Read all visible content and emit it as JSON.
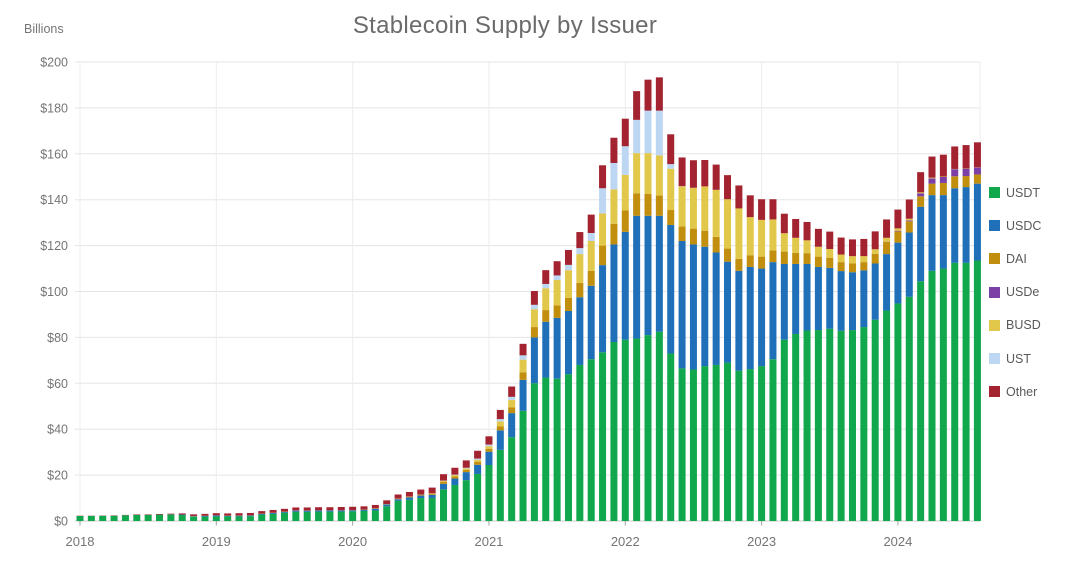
{
  "chart_data": {
    "type": "bar",
    "stacked": true,
    "title": "Stablecoin Supply by Issuer",
    "y_axis_label": "Billions",
    "ylim": [
      0,
      200
    ],
    "y_tick_step": 20,
    "y_tick_labels": [
      "$0",
      "$20",
      "$40",
      "$60",
      "$80",
      "$100",
      "$120",
      "$140",
      "$160",
      "$180",
      "$200"
    ],
    "x_tick_labels": [
      "2018",
      "2019",
      "2020",
      "2021",
      "2022",
      "2023",
      "2024"
    ],
    "legend_position": "right",
    "grid": "horizontal gridlines at $20 steps, faint vertical gridlines at year starts",
    "colors": {
      "background": "#FFFFFF",
      "gridline": "#E5E5E5",
      "year_gridline": "#ECECEC",
      "axis_line": "#CBCBCB",
      "tick_mark": "#A0A0A0",
      "tick_text": "#757575",
      "title_text": "#6B6B6B"
    },
    "months": [
      "2018-01",
      "2018-02",
      "2018-03",
      "2018-04",
      "2018-05",
      "2018-06",
      "2018-07",
      "2018-08",
      "2018-09",
      "2018-10",
      "2018-11",
      "2018-12",
      "2019-01",
      "2019-02",
      "2019-03",
      "2019-04",
      "2019-05",
      "2019-06",
      "2019-07",
      "2019-08",
      "2019-09",
      "2019-10",
      "2019-11",
      "2019-12",
      "2020-01",
      "2020-02",
      "2020-03",
      "2020-04",
      "2020-05",
      "2020-06",
      "2020-07",
      "2020-08",
      "2020-09",
      "2020-10",
      "2020-11",
      "2020-12",
      "2021-01",
      "2021-02",
      "2021-03",
      "2021-04",
      "2021-05",
      "2021-06",
      "2021-07",
      "2021-08",
      "2021-09",
      "2021-10",
      "2021-11",
      "2021-12",
      "2022-01",
      "2022-02",
      "2022-03",
      "2022-04",
      "2022-05",
      "2022-06",
      "2022-07",
      "2022-08",
      "2022-09",
      "2022-10",
      "2022-11",
      "2022-12",
      "2023-01",
      "2023-02",
      "2023-03",
      "2023-04",
      "2023-05",
      "2023-06",
      "2023-07",
      "2023-08",
      "2023-09",
      "2023-10",
      "2023-11",
      "2023-12",
      "2024-01",
      "2024-02",
      "2024-03",
      "2024-04",
      "2024-05",
      "2024-06",
      "2024-07",
      "2024-08"
    ],
    "series": [
      {
        "name": "USDT",
        "color": "#10A74D",
        "values": [
          2.2,
          2.2,
          2.3,
          2.3,
          2.5,
          2.7,
          2.7,
          2.8,
          2.8,
          2.6,
          1.9,
          1.9,
          2.0,
          2.0,
          2.0,
          2.1,
          2.8,
          3.1,
          3.6,
          4.0,
          4.0,
          4.1,
          4.1,
          4.1,
          4.2,
          4.4,
          4.6,
          6.4,
          8.8,
          9.2,
          10.0,
          10.0,
          13.8,
          15.7,
          17.8,
          20.5,
          24.4,
          31.0,
          36.5,
          48.0,
          60.0,
          62.5,
          62.0,
          64.0,
          68.0,
          70.5,
          73.5,
          78.0,
          79.0,
          79.5,
          81.0,
          82.5,
          73.0,
          66.5,
          66.0,
          67.5,
          68.0,
          69.0,
          65.5,
          66.2,
          67.5,
          70.5,
          79.0,
          81.5,
          83.0,
          83.2,
          83.8,
          82.9,
          83.2,
          84.5,
          87.7,
          91.7,
          94.8,
          97.7,
          104.5,
          109.0,
          110.0,
          112.5,
          112.5,
          113.5
        ]
      },
      {
        "name": "USDC",
        "color": "#1F70B8",
        "values": [
          0,
          0,
          0,
          0,
          0,
          0,
          0,
          0,
          0.1,
          0.2,
          0.2,
          0.3,
          0.4,
          0.3,
          0.3,
          0.3,
          0.3,
          0.4,
          0.4,
          0.5,
          0.5,
          0.5,
          0.5,
          0.5,
          0.5,
          0.5,
          0.7,
          0.8,
          0.7,
          1.1,
          1.1,
          1.4,
          2.4,
          2.8,
          3.5,
          4.0,
          5.8,
          8.5,
          10.5,
          13.5,
          20.0,
          24.3,
          26.5,
          27.5,
          29.5,
          32.0,
          38.0,
          42.5,
          47.0,
          53.5,
          52.0,
          50.5,
          56.0,
          55.5,
          54.5,
          52.0,
          49.0,
          44.0,
          43.5,
          44.5,
          42.5,
          42.3,
          33.0,
          30.5,
          29.0,
          27.5,
          26.5,
          26.0,
          25.2,
          24.7,
          24.5,
          24.6,
          26.5,
          28.0,
          32.4,
          33.0,
          32.0,
          32.5,
          33.0,
          33.5
        ]
      },
      {
        "name": "DAI",
        "color": "#C28E0D",
        "values": [
          0,
          0,
          0,
          0,
          0,
          0,
          0,
          0,
          0,
          0,
          0.1,
          0.1,
          0.1,
          0.1,
          0.1,
          0.1,
          0.1,
          0.1,
          0.1,
          0.1,
          0.1,
          0.1,
          0.1,
          0.1,
          0.1,
          0.1,
          0.1,
          0.1,
          0.1,
          0.2,
          0.2,
          0.4,
          0.9,
          0.9,
          1.0,
          1.2,
          1.3,
          1.8,
          2.5,
          3.3,
          4.5,
          5.1,
          5.5,
          5.8,
          6.3,
          6.5,
          8.5,
          9.0,
          9.3,
          9.8,
          9.5,
          8.8,
          6.5,
          6.3,
          6.9,
          7.0,
          6.8,
          5.7,
          5.2,
          5.1,
          5.2,
          5.1,
          5.4,
          4.8,
          4.7,
          4.5,
          4.3,
          3.9,
          3.9,
          3.6,
          4.2,
          5.3,
          4.9,
          4.9,
          4.6,
          5.0,
          5.3,
          5.2,
          4.8,
          4.0
        ]
      },
      {
        "name": "USDe",
        "color": "#7B3FA6",
        "values": [
          0,
          0,
          0,
          0,
          0,
          0,
          0,
          0,
          0,
          0,
          0,
          0,
          0,
          0,
          0,
          0,
          0,
          0,
          0,
          0,
          0,
          0,
          0,
          0,
          0,
          0,
          0,
          0,
          0,
          0,
          0,
          0,
          0,
          0,
          0,
          0,
          0,
          0,
          0,
          0,
          0,
          0,
          0,
          0,
          0,
          0,
          0,
          0,
          0,
          0,
          0,
          0,
          0,
          0,
          0,
          0,
          0,
          0,
          0,
          0,
          0,
          0,
          0,
          0,
          0,
          0,
          0,
          0,
          0,
          0,
          0,
          0.1,
          0.3,
          0.4,
          1.3,
          2.3,
          2.6,
          3.1,
          3.2,
          3.0
        ]
      },
      {
        "name": "BUSD",
        "color": "#E2C84A",
        "values": [
          0,
          0,
          0,
          0,
          0,
          0,
          0,
          0,
          0,
          0,
          0,
          0,
          0,
          0,
          0,
          0,
          0,
          0,
          0,
          0,
          0,
          0,
          0,
          0,
          0,
          0,
          0.1,
          0.1,
          0.15,
          0.15,
          0.2,
          0.25,
          0.4,
          0.6,
          0.6,
          1.0,
          1.1,
          2.1,
          3.2,
          5.5,
          7.8,
          9.5,
          11.0,
          12.0,
          12.5,
          13.0,
          14.0,
          15.0,
          15.5,
          17.5,
          17.8,
          17.5,
          18.0,
          17.5,
          17.8,
          19.3,
          20.5,
          21.5,
          22.0,
          16.6,
          16.0,
          13.5,
          8.0,
          6.6,
          5.6,
          4.3,
          3.9,
          3.3,
          3.1,
          2.6,
          2.0,
          1.7,
          1.0,
          0.7,
          0.4,
          0.3,
          0.2,
          0.1,
          0.1,
          0.1
        ]
      },
      {
        "name": "UST",
        "color": "#BDD7F3",
        "values": [
          0,
          0,
          0,
          0,
          0,
          0,
          0,
          0,
          0,
          0,
          0,
          0,
          0,
          0,
          0,
          0,
          0,
          0,
          0,
          0,
          0,
          0,
          0,
          0,
          0,
          0,
          0,
          0,
          0,
          0,
          0,
          0,
          0.1,
          0.2,
          0.3,
          0.5,
          0.7,
          1.0,
          1.4,
          1.9,
          1.9,
          1.9,
          2.0,
          2.3,
          2.6,
          3.5,
          11.0,
          11.5,
          12.5,
          14.5,
          18.5,
          19.5,
          2.0,
          0.1,
          0,
          0,
          0,
          0,
          0,
          0,
          0,
          0,
          0,
          0,
          0,
          0,
          0,
          0,
          0,
          0,
          0,
          0,
          0,
          0,
          0,
          0,
          0,
          0,
          0,
          0
        ]
      },
      {
        "name": "Other",
        "color": "#A32330",
        "values": [
          0.1,
          0.1,
          0.1,
          0.15,
          0.15,
          0.2,
          0.2,
          0.25,
          0.3,
          0.5,
          0.7,
          0.8,
          0.9,
          0.9,
          1.0,
          1.0,
          1.1,
          1.2,
          1.2,
          1.3,
          1.3,
          1.3,
          1.3,
          1.4,
          1.4,
          1.4,
          1.5,
          1.6,
          1.8,
          2.0,
          2.2,
          2.5,
          2.8,
          3.0,
          3.2,
          3.4,
          3.6,
          4.0,
          4.5,
          5.0,
          6.0,
          6.0,
          6.2,
          6.5,
          7.0,
          8.0,
          10.0,
          11.0,
          12.0,
          12.5,
          13.5,
          14.5,
          13.0,
          12.5,
          12.0,
          11.5,
          11.0,
          10.5,
          10.0,
          9.5,
          9.0,
          8.8,
          8.5,
          8.2,
          8.0,
          7.8,
          7.6,
          7.4,
          7.3,
          7.5,
          7.8,
          8.0,
          8.2,
          8.4,
          8.8,
          9.2,
          9.5,
          9.8,
          10.2,
          10.9
        ]
      }
    ]
  }
}
